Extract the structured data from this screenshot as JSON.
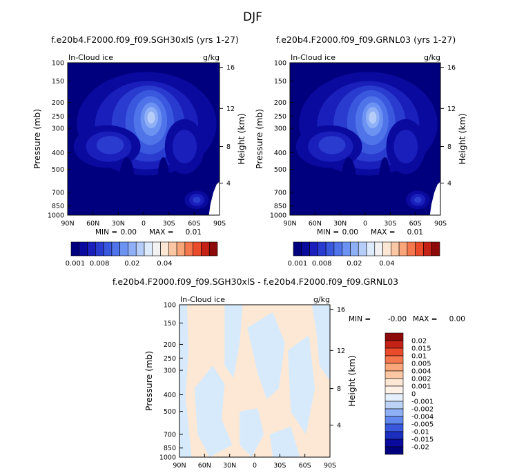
{
  "page_title": "DJF",
  "colors": {
    "background": "#ffffff",
    "frame": "#000000",
    "fill_palette": [
      "#00007f",
      "#0a0a9e",
      "#1a1fbb",
      "#2a3bd0",
      "#3a58de",
      "#4f74ea",
      "#6c92f2",
      "#8fb0f6",
      "#b7cdf9",
      "#deebfd"
    ],
    "anomaly_palette": [
      "#f2f2f2",
      "#fce6d4",
      "#fbc6a3",
      "#f8a67a",
      "#f4774d",
      "#ea4b2b",
      "#c42217",
      "#8c0a0a"
    ],
    "diff_blue": "#d7eafc",
    "diff_peach": "#fce8d5"
  },
  "chart_data": [
    {
      "type": "heatmap",
      "title": "f.e20b4.F2000.f09_f09.SGH30xlS (yrs 1-27)",
      "variable_label": "In-Cloud ice",
      "units_label": "g/kg",
      "ylabel": "Pressure (mb)",
      "y2label": "Height (km)",
      "x_ticks": [
        "90N",
        "60N",
        "30N",
        "0",
        "30S",
        "60S",
        "90S"
      ],
      "y_ticks": [
        "100",
        "150",
        "200",
        "250",
        "300",
        "400",
        "500",
        "700",
        "850",
        "1000"
      ],
      "y2_ticks": [
        "16",
        "12",
        "8",
        "4"
      ],
      "stats": {
        "min_label": "MIN =",
        "min_value": "0.00",
        "max_label": "MAX =",
        "max_value": "0.01"
      },
      "colorbar": {
        "orientation": "horizontal",
        "labels": [
          "0.001",
          "0.008",
          "0.02",
          "0.04"
        ]
      }
    },
    {
      "type": "heatmap",
      "title": "f.e20b4.F2000.f09_f09.GRNL03 (yrs 1-27)",
      "variable_label": "In-Cloud ice",
      "units_label": "g/kg",
      "ylabel": "Pressure (mb)",
      "y2label": "Height (km)",
      "x_ticks": [
        "90N",
        "60N",
        "30N",
        "0",
        "30S",
        "60S",
        "90S"
      ],
      "y_ticks": [
        "100",
        "150",
        "200",
        "250",
        "300",
        "400",
        "500",
        "700",
        "850",
        "1000"
      ],
      "y2_ticks": [
        "16",
        "12",
        "8",
        "4"
      ],
      "stats": {
        "min_label": "MIN =",
        "min_value": "0.00",
        "max_label": "MAX =",
        "max_value": "0.01"
      },
      "colorbar": {
        "orientation": "horizontal",
        "labels": [
          "0.001",
          "0.008",
          "0.02",
          "0.04"
        ]
      }
    },
    {
      "type": "heatmap",
      "title": "f.e20b4.F2000.f09_f09.SGH30xlS - f.e20b4.F2000.f09_f09.GRNL03",
      "variable_label": "In-Cloud ice",
      "units_label": "g/kg",
      "ylabel": "Pressure (mb)",
      "y2label": "Height (km)",
      "x_ticks": [
        "90N",
        "60N",
        "30N",
        "0",
        "30S",
        "60S",
        "90S"
      ],
      "y_ticks": [
        "100",
        "150",
        "200",
        "250",
        "300",
        "400",
        "500",
        "700",
        "850",
        "1000"
      ],
      "y2_ticks": [
        "16",
        "12",
        "8",
        "4"
      ],
      "stats": {
        "min_label": "MIN =",
        "min_value": "-0.00",
        "max_label": "MAX =",
        "max_value": "0.00"
      },
      "colorbar": {
        "orientation": "vertical",
        "labels": [
          "0.02",
          "0.015",
          "0.01",
          "0.005",
          "0.004",
          "0.002",
          "0.001",
          "0",
          "-0.001",
          "-0.002",
          "-0.004",
          "-0.005",
          "-0.01",
          "-0.015",
          "-0.02"
        ]
      }
    }
  ]
}
